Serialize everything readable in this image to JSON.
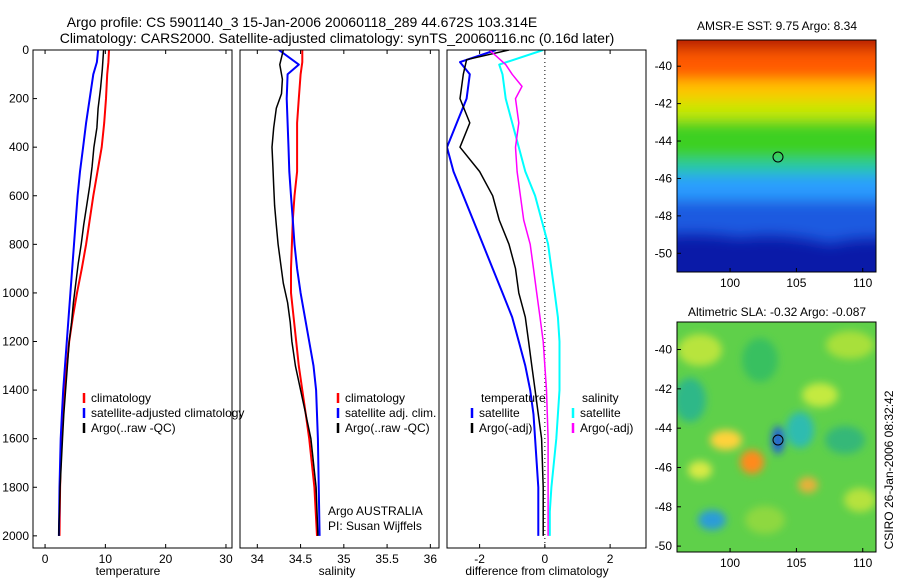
{
  "header": {
    "line1": "Argo profile: CS 5901140_3 15-Jan-2006 20060118_289 44.672S 103.314E",
    "line2": "Climatology: CARS2000. Satellite-adjusted climatology: synTS_20060116.nc (0.16d later)"
  },
  "colors": {
    "climatology": "#ff0000",
    "satellite": "#0000ff",
    "argo": "#000000",
    "sal_satellite": "#00ffff",
    "sal_argo": "#ff00ff"
  },
  "chart_data": [
    {
      "id": "temperature",
      "type": "line",
      "xlabel": "temperature",
      "ylabel": "",
      "xlim": [
        -2,
        31
      ],
      "ylim": [
        0,
        2050
      ],
      "y_reversed": true,
      "xticks": [
        0,
        10,
        20,
        30
      ],
      "yticks": [
        0,
        200,
        400,
        600,
        800,
        1000,
        1200,
        1400,
        1600,
        1800,
        2000
      ],
      "series": [
        {
          "name": "climatology",
          "color": "#ff0000",
          "width": 2,
          "x": [
            10.6,
            10.5,
            10.3,
            10.1,
            9.8,
            9.4,
            8.7,
            8.0,
            7.4,
            6.8,
            6.1,
            5.3,
            4.6,
            4.0,
            3.6,
            3.2,
            2.9,
            2.7,
            2.6,
            2.5,
            2.4
          ],
          "y": [
            0,
            50,
            100,
            200,
            300,
            400,
            500,
            600,
            700,
            800,
            900,
            1000,
            1100,
            1200,
            1300,
            1400,
            1500,
            1600,
            1700,
            1800,
            2000
          ]
        },
        {
          "name": "satellite-adjusted climatology",
          "color": "#0000ff",
          "width": 2,
          "x": [
            8.8,
            8.6,
            8.0,
            7.4,
            6.8,
            6.3,
            5.8,
            5.4,
            5.1,
            4.8,
            4.5,
            4.2,
            3.9,
            3.6,
            3.3,
            3.0,
            2.8,
            2.6,
            2.5,
            2.4,
            2.3
          ],
          "y": [
            0,
            50,
            100,
            200,
            300,
            400,
            500,
            600,
            700,
            800,
            900,
            1000,
            1100,
            1200,
            1300,
            1400,
            1500,
            1600,
            1700,
            1800,
            2000
          ]
        },
        {
          "name": "Argo(..raw -QC)",
          "color": "#000000",
          "width": 1.5,
          "x": [
            9.7,
            9.5,
            9.2,
            8.8,
            8.6,
            8.1,
            7.8,
            7.4,
            6.9,
            6.4,
            6.0,
            5.5,
            5.1,
            4.7,
            4.4,
            4.0,
            3.7,
            3.4,
            3.1,
            2.9,
            2.7,
            2.5,
            2.4,
            2.3,
            2.3
          ],
          "y": [
            0,
            80,
            160,
            240,
            320,
            400,
            480,
            560,
            640,
            720,
            800,
            880,
            960,
            1040,
            1120,
            1200,
            1300,
            1400,
            1500,
            1600,
            1700,
            1800,
            1900,
            1960,
            2000
          ]
        }
      ],
      "legend": [
        "climatology",
        "satellite-adjusted climatology",
        "Argo(..raw -QC)"
      ],
      "legend_position": "lower-right"
    },
    {
      "id": "salinity",
      "type": "line",
      "xlabel": "salinity",
      "xlim": [
        33.8,
        36.1
      ],
      "ylim": [
        0,
        2050
      ],
      "y_reversed": true,
      "xticks": [
        34,
        34.5,
        35,
        35.5,
        36
      ],
      "series": [
        {
          "name": "climatology",
          "color": "#ff0000",
          "width": 2,
          "x": [
            34.52,
            34.52,
            34.5,
            34.48,
            34.46,
            34.46,
            34.46,
            34.43,
            34.41,
            34.4,
            34.39,
            34.39,
            34.42,
            34.45,
            34.48,
            34.52,
            34.56,
            34.6,
            34.63,
            34.66,
            34.69
          ],
          "y": [
            0,
            50,
            100,
            200,
            300,
            400,
            500,
            600,
            700,
            800,
            900,
            1000,
            1100,
            1200,
            1300,
            1400,
            1500,
            1600,
            1700,
            1800,
            2000
          ]
        },
        {
          "name": "satellite adj. clim.",
          "color": "#0000ff",
          "width": 2,
          "x": [
            34.25,
            34.48,
            34.35,
            34.34,
            34.35,
            34.36,
            34.37,
            34.39,
            34.41,
            34.43,
            34.46,
            34.5,
            34.55,
            34.6,
            34.65,
            34.68,
            34.7,
            34.72
          ],
          "y": [
            0,
            60,
            100,
            200,
            300,
            400,
            500,
            600,
            700,
            800,
            900,
            1000,
            1100,
            1200,
            1300,
            1400,
            1600,
            2000
          ]
        },
        {
          "name": "Argo(..raw -QC)",
          "color": "#000000",
          "width": 1.5,
          "x": [
            34.3,
            34.26,
            34.29,
            34.28,
            34.22,
            34.19,
            34.17,
            34.18,
            34.19,
            34.2,
            34.22,
            34.24,
            34.27,
            34.3,
            34.35,
            34.38,
            34.4,
            34.44,
            34.5,
            34.56,
            34.62,
            34.68,
            34.7
          ],
          "y": [
            0,
            60,
            120,
            180,
            240,
            320,
            400,
            480,
            560,
            640,
            720,
            800,
            880,
            960,
            1040,
            1120,
            1200,
            1300,
            1400,
            1500,
            1600,
            1800,
            2000
          ]
        }
      ],
      "legend": [
        "climatology",
        "satellite adj. clim.",
        "Argo(..raw -QC)"
      ],
      "legend_position": "lower-right",
      "annotation": [
        "Argo AUSTRALIA",
        "PI: Susan Wijffels"
      ]
    },
    {
      "id": "difference",
      "type": "line",
      "xlabel": "difference from climatology",
      "xlim": [
        -3,
        3.1
      ],
      "ylim": [
        0,
        2050
      ],
      "y_reversed": true,
      "xticks": [
        -2,
        0,
        2
      ],
      "zero_line": true,
      "series": [
        {
          "name": "temperature satellite",
          "color": "#0000ff",
          "width": 2,
          "x": [
            -1.5,
            -2.6,
            -2.3,
            -2.4,
            -2.7,
            -3.0,
            -2.8,
            -2.5,
            -2.2,
            -1.9,
            -1.6,
            -1.3,
            -1.0,
            -0.8,
            -0.6,
            -0.45,
            -0.35,
            -0.3,
            -0.25,
            -0.2,
            -0.2
          ],
          "y": [
            0,
            50,
            100,
            200,
            300,
            400,
            500,
            600,
            700,
            800,
            900,
            1000,
            1100,
            1200,
            1300,
            1400,
            1500,
            1600,
            1700,
            1800,
            2000
          ]
        },
        {
          "name": "temperature Argo(-adj)",
          "color": "#000000",
          "width": 1.5,
          "x": [
            -1.1,
            -2.4,
            -2.5,
            -2.6,
            -2.3,
            -2.6,
            -2.0,
            -1.6,
            -1.4,
            -1.1,
            -0.9,
            -0.8,
            -0.6,
            -0.5,
            -0.4,
            -0.3,
            -0.2,
            -0.1,
            -0.05,
            -0.05
          ],
          "y": [
            0,
            40,
            100,
            200,
            300,
            400,
            500,
            600,
            700,
            800,
            900,
            1000,
            1100,
            1200,
            1300,
            1400,
            1500,
            1600,
            1800,
            2000
          ]
        },
        {
          "name": "salinity satellite",
          "color": "#00ffff",
          "width": 2,
          "x": [
            -0.05,
            -1.4,
            -1.3,
            -1.2,
            -1.0,
            -0.8,
            -0.6,
            -0.3,
            -0.1,
            0.1,
            0.2,
            0.3,
            0.4,
            0.45,
            0.45,
            0.35,
            0.2,
            0.15,
            0.15
          ],
          "y": [
            0,
            60,
            100,
            200,
            300,
            400,
            500,
            600,
            700,
            800,
            900,
            1000,
            1100,
            1200,
            1400,
            1600,
            1800,
            1900,
            2000
          ]
        },
        {
          "name": "salinity Argo(-adj)",
          "color": "#ff00ff",
          "width": 1.5,
          "x": [
            -1.7,
            -1.2,
            -1.0,
            -0.7,
            -0.9,
            -0.8,
            -0.9,
            -0.85,
            -0.75,
            -0.65,
            -0.45,
            -0.35,
            -0.25,
            -0.15,
            -0.05,
            0.05,
            0.1,
            0.1
          ],
          "y": [
            0,
            60,
            100,
            150,
            200,
            300,
            400,
            500,
            600,
            700,
            800,
            900,
            1000,
            1100,
            1200,
            1400,
            1600,
            2000
          ]
        }
      ],
      "legend": [
        {
          "heading": "temperature",
          "items": [
            "satellite",
            "Argo(-adj)"
          ]
        },
        {
          "heading": "salinity",
          "items": [
            "satellite",
            "Argo(-adj)"
          ]
        }
      ],
      "legend_position": "lower-center"
    },
    {
      "id": "sst_map",
      "type": "heatmap",
      "title": "AMSR-E SST: 9.75 Argo: 8.34",
      "xlim": [
        96,
        111
      ],
      "ylim": [
        -51,
        -38.6
      ],
      "xticks": [
        100,
        105,
        110
      ],
      "yticks": [
        -40,
        -42,
        -44,
        -46,
        -48,
        -50
      ],
      "argo_position": {
        "lon": 103.314,
        "lat": -44.672
      }
    },
    {
      "id": "sla_map",
      "type": "heatmap",
      "title": "Altimetric SLA: -0.32 Argo: -0.087",
      "xlim": [
        96,
        111
      ],
      "ylim": [
        -50.3,
        -38.6
      ],
      "xticks": [
        100,
        105,
        110
      ],
      "yticks": [
        -40,
        -42,
        -44,
        -46,
        -48,
        -50
      ],
      "argo_position": {
        "lon": 103.314,
        "lat": -44.672
      }
    }
  ],
  "footer": {
    "stamp": "CSIRO 26-Jan-2006 08:32:42"
  }
}
